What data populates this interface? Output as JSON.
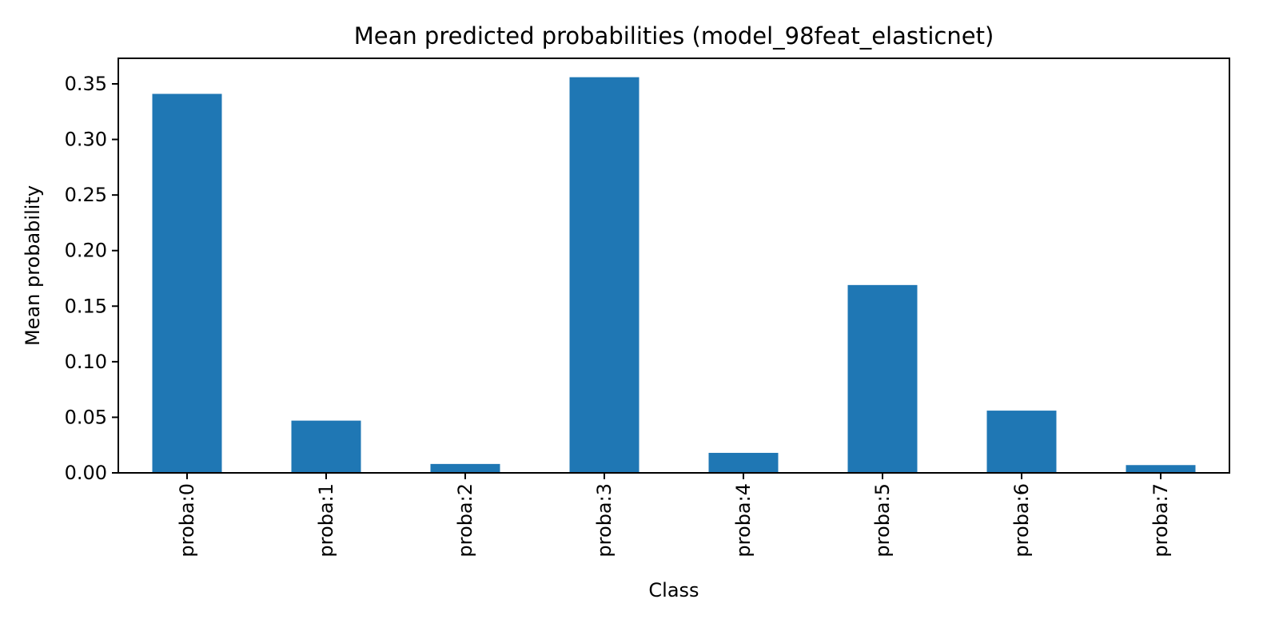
{
  "chart_data": {
    "type": "bar",
    "title": "Mean predicted probabilities (model_98feat_elasticnet)",
    "xlabel": "Class",
    "ylabel": "Mean probability",
    "categories": [
      "proba:0",
      "proba:1",
      "proba:2",
      "proba:3",
      "proba:4",
      "proba:5",
      "proba:6",
      "proba:7"
    ],
    "values": [
      0.341,
      0.047,
      0.008,
      0.356,
      0.018,
      0.169,
      0.056,
      0.007
    ],
    "ylim": [
      0,
      0.373
    ],
    "yticks": [
      0.0,
      0.05,
      0.1,
      0.15,
      0.2,
      0.25,
      0.3,
      0.35
    ],
    "ytick_labels": [
      "0.00",
      "0.05",
      "0.10",
      "0.15",
      "0.20",
      "0.25",
      "0.30",
      "0.35"
    ],
    "bar_color": "#1f77b4",
    "grid": false,
    "legend": "none"
  }
}
